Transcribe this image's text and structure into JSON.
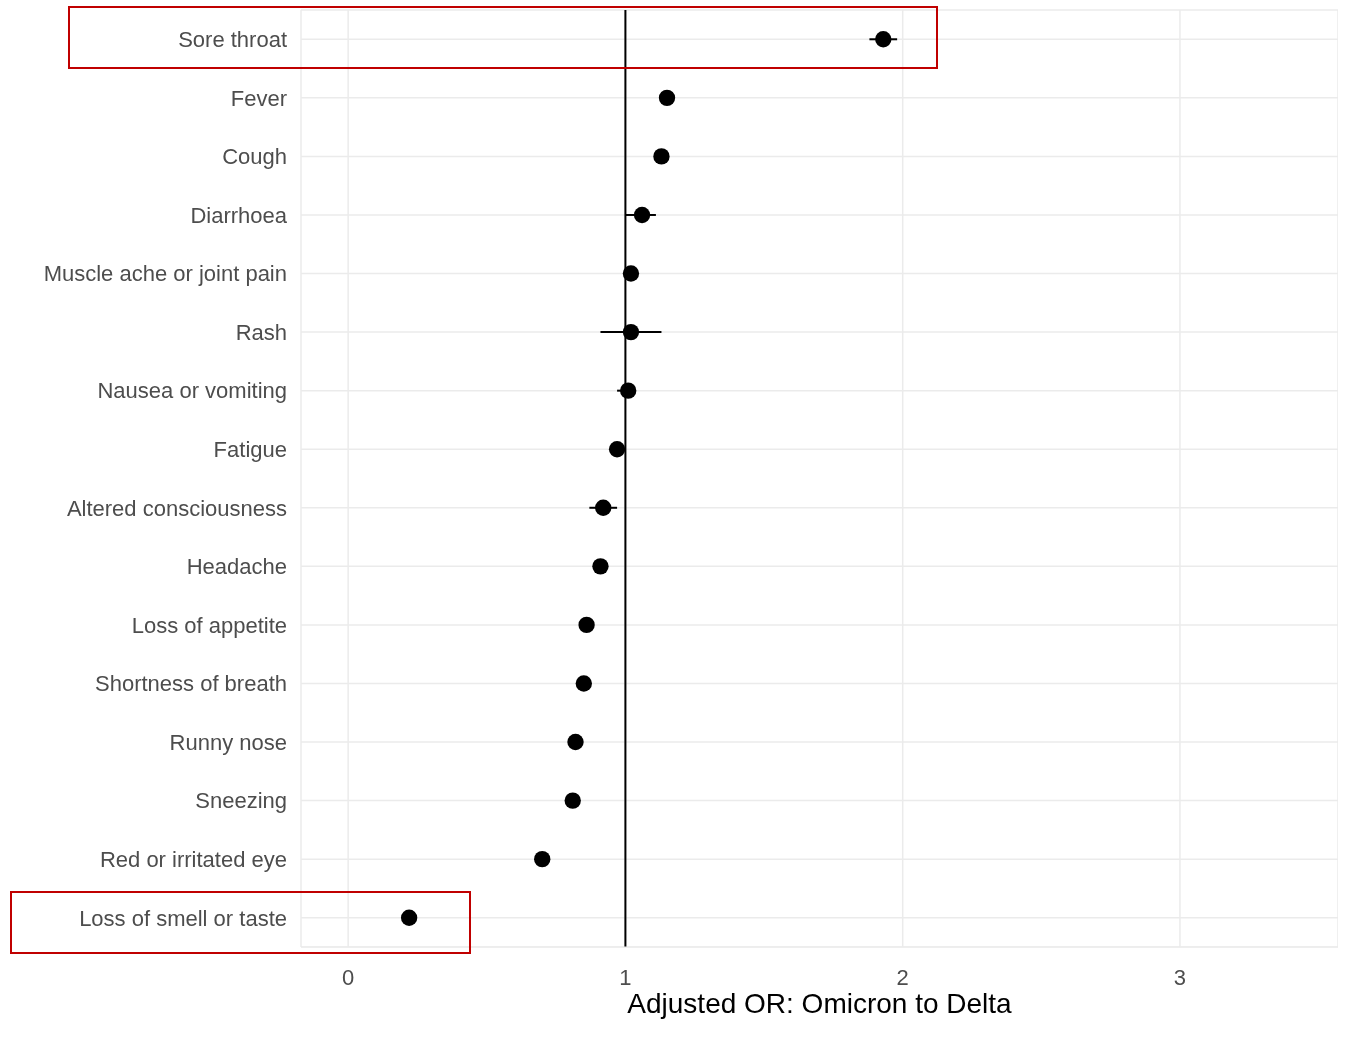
{
  "chart_data": {
    "type": "scatter",
    "orientation": "horizontal",
    "xlabel": "Adjusted OR: Omicron to Delta",
    "categories": [
      "Sore throat",
      "Fever",
      "Cough",
      "Diarrhoea",
      "Muscle ache or joint pain",
      "Rash",
      "Nausea or vomiting",
      "Fatigue",
      "Altered consciousness",
      "Headache",
      "Loss of appetite",
      "Shortness of breath",
      "Runny nose",
      "Sneezing",
      "Red or irritated eye",
      "Loss of smell or taste"
    ],
    "values": [
      1.93,
      1.15,
      1.13,
      1.06,
      1.02,
      1.02,
      1.01,
      0.97,
      0.92,
      0.91,
      0.86,
      0.85,
      0.82,
      0.81,
      0.7,
      0.22
    ],
    "errors": [
      [
        1.88,
        1.98
      ],
      null,
      null,
      [
        1.0,
        1.11
      ],
      null,
      [
        0.91,
        1.13
      ],
      [
        0.97,
        1.03
      ],
      null,
      [
        0.87,
        0.97
      ],
      null,
      null,
      null,
      null,
      null,
      null,
      null
    ],
    "color": "#000000",
    "marker": "circle",
    "grid": true,
    "legend": false,
    "xlim": [
      -0.17,
      3.57
    ],
    "xticks": [
      0,
      1,
      2,
      3
    ],
    "ref_lines": [
      {
        "axis": "x",
        "value": 1,
        "color": "#000000"
      }
    ]
  }
}
